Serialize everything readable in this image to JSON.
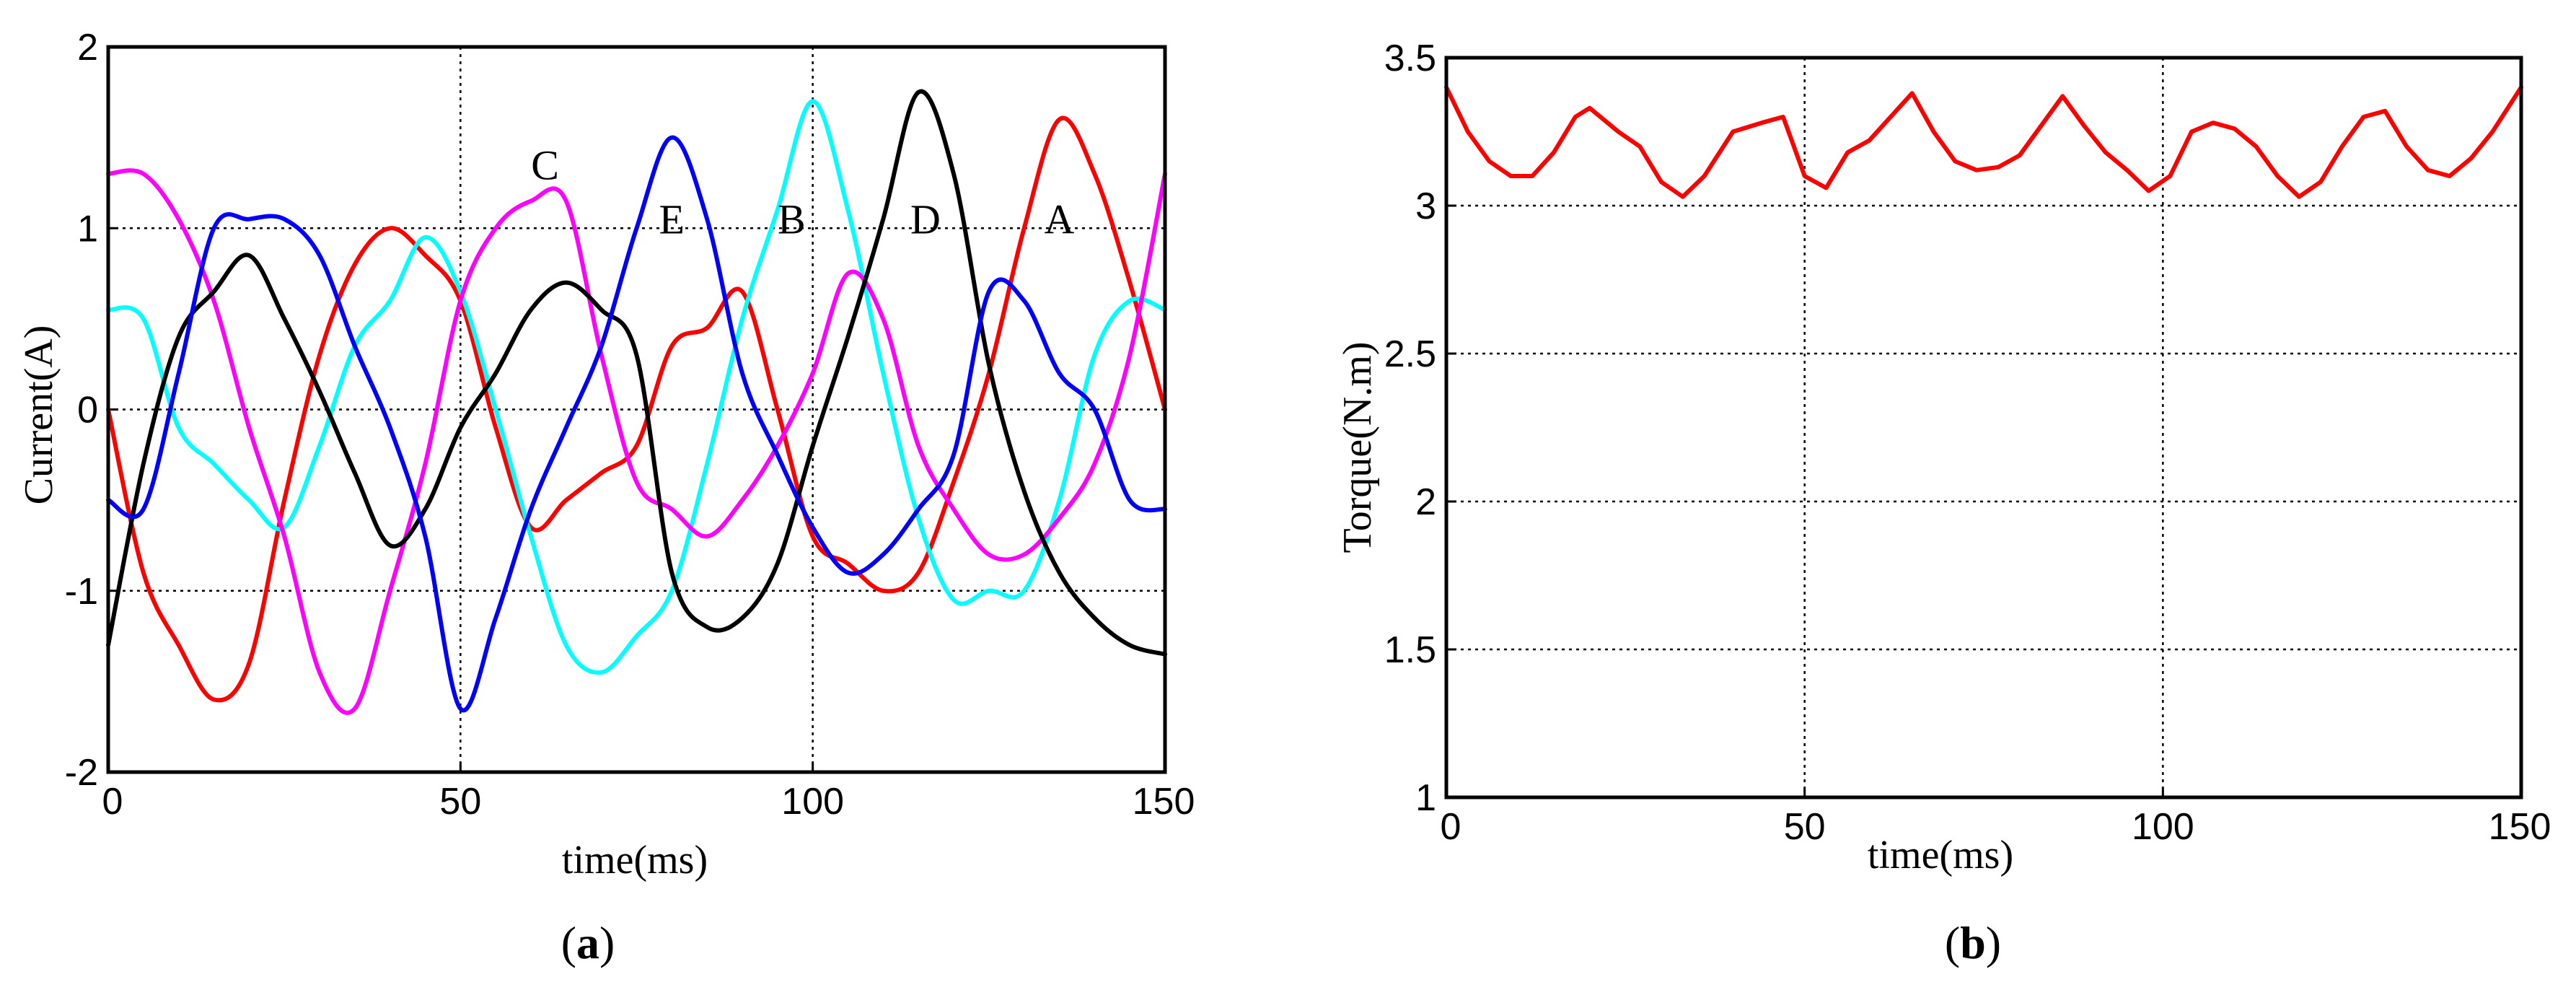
{
  "figure": {
    "panels": [
      {
        "caption_open": "(",
        "caption_letter": "a",
        "caption_close": ")"
      },
      {
        "caption_open": "(",
        "caption_letter": "b",
        "caption_close": ")"
      }
    ]
  },
  "chart_data": [
    {
      "type": "line",
      "panel": "a",
      "title": "",
      "xlabel": "time(ms)",
      "ylabel": "Current(A)",
      "xlim": [
        0,
        150
      ],
      "ylim": [
        -2,
        2
      ],
      "xticks": [
        0,
        50,
        100,
        150
      ],
      "yticks": [
        -2,
        -1,
        0,
        1,
        2
      ],
      "grid": true,
      "annotations": [
        {
          "text": "C",
          "x": 62,
          "y": 1.35
        },
        {
          "text": "E",
          "x": 80,
          "y": 1.05
        },
        {
          "text": "B",
          "x": 97,
          "y": 1.05
        },
        {
          "text": "D",
          "x": 116,
          "y": 1.05
        },
        {
          "text": "A",
          "x": 135,
          "y": 1.05
        }
      ],
      "series": [
        {
          "name": "A",
          "color": "#ff0000",
          "x": [
            0,
            5,
            10,
            15,
            20,
            25,
            30,
            35,
            40,
            45,
            50,
            55,
            60,
            65,
            70,
            75,
            80,
            85,
            90,
            95,
            100,
            105,
            110,
            115,
            120,
            125,
            130,
            135,
            140,
            145,
            150
          ],
          "values": [
            0,
            -0.9,
            -1.3,
            -1.6,
            -1.4,
            -0.5,
            0.3,
            0.8,
            1.0,
            0.85,
            0.6,
            -0.1,
            -0.65,
            -0.5,
            -0.35,
            -0.2,
            0.35,
            0.45,
            0.65,
            0.0,
            -0.7,
            -0.85,
            -1.0,
            -0.9,
            -0.4,
            0.2,
            1.0,
            1.6,
            1.3,
            0.7,
            0.0
          ]
        },
        {
          "name": "B",
          "color": "#00ffff",
          "x": [
            0,
            5,
            10,
            15,
            20,
            25,
            30,
            35,
            40,
            45,
            50,
            55,
            60,
            65,
            70,
            75,
            80,
            85,
            90,
            95,
            100,
            105,
            110,
            115,
            120,
            125,
            130,
            135,
            140,
            145,
            150
          ],
          "values": [
            0.55,
            0.5,
            -0.1,
            -0.3,
            -0.5,
            -0.65,
            -0.2,
            0.35,
            0.6,
            0.95,
            0.65,
            0.0,
            -0.7,
            -1.3,
            -1.45,
            -1.25,
            -1.0,
            -0.3,
            0.5,
            1.1,
            1.7,
            1.1,
            0.2,
            -0.6,
            -1.05,
            -1.0,
            -1.0,
            -0.5,
            0.3,
            0.6,
            0.55
          ]
        },
        {
          "name": "C",
          "color": "#ff00ff",
          "x": [
            0,
            5,
            10,
            15,
            20,
            25,
            30,
            35,
            40,
            45,
            50,
            55,
            60,
            65,
            70,
            75,
            80,
            85,
            90,
            95,
            100,
            105,
            110,
            115,
            120,
            125,
            130,
            135,
            140,
            145,
            150
          ],
          "values": [
            1.3,
            1.3,
            1.05,
            0.6,
            -0.1,
            -0.7,
            -1.45,
            -1.65,
            -1.0,
            -0.3,
            0.6,
            1.0,
            1.15,
            1.15,
            0.3,
            -0.4,
            -0.55,
            -0.7,
            -0.5,
            -0.2,
            0.2,
            0.75,
            0.5,
            -0.2,
            -0.55,
            -0.8,
            -0.8,
            -0.6,
            -0.3,
            0.3,
            1.3
          ]
        },
        {
          "name": "D",
          "color": "#000000",
          "x": [
            0,
            5,
            10,
            15,
            20,
            25,
            30,
            35,
            40,
            45,
            50,
            55,
            60,
            65,
            70,
            75,
            80,
            85,
            90,
            95,
            100,
            105,
            110,
            115,
            120,
            125,
            130,
            135,
            140,
            145,
            150
          ],
          "values": [
            -1.3,
            -0.3,
            0.4,
            0.65,
            0.85,
            0.5,
            0.1,
            -0.35,
            -0.75,
            -0.55,
            -0.1,
            0.2,
            0.55,
            0.7,
            0.55,
            0.3,
            -0.9,
            -1.2,
            -1.15,
            -0.85,
            -0.2,
            0.4,
            1.05,
            1.75,
            1.3,
            0.25,
            -0.45,
            -0.9,
            -1.15,
            -1.3,
            -1.35
          ]
        },
        {
          "name": "E",
          "color": "#0000ff",
          "x": [
            0,
            5,
            10,
            15,
            20,
            25,
            30,
            35,
            40,
            45,
            50,
            55,
            60,
            65,
            70,
            75,
            80,
            85,
            90,
            95,
            100,
            105,
            110,
            115,
            120,
            125,
            130,
            135,
            140,
            145,
            150
          ],
          "values": [
            -0.5,
            -0.55,
            0.2,
            1.0,
            1.05,
            1.05,
            0.85,
            0.35,
            -0.1,
            -0.7,
            -1.65,
            -1.15,
            -0.55,
            -0.1,
            0.35,
            1.0,
            1.5,
            1.05,
            0.2,
            -0.25,
            -0.65,
            -0.9,
            -0.8,
            -0.55,
            -0.25,
            0.65,
            0.6,
            0.2,
            0.0,
            -0.5,
            -0.55
          ]
        }
      ]
    },
    {
      "type": "line",
      "panel": "b",
      "title": "",
      "xlabel": "time(ms)",
      "ylabel": "Torque(N.m)",
      "xlim": [
        0,
        150
      ],
      "ylim": [
        1,
        3.5
      ],
      "xticks": [
        0,
        50,
        100,
        150
      ],
      "yticks": [
        1,
        1.5,
        2,
        2.5,
        3,
        3.5
      ],
      "ytick_labels": [
        "1",
        "1.5",
        "2",
        "2.5",
        "3",
        "3.5"
      ],
      "grid": true,
      "series": [
        {
          "name": "Torque",
          "color": "#ff0000",
          "x": [
            0,
            3,
            6,
            9,
            12,
            15,
            18,
            20,
            24,
            27,
            30,
            33,
            36,
            40,
            44,
            47,
            50,
            53,
            56,
            59,
            62,
            65,
            68,
            71,
            74,
            77,
            80,
            83,
            86,
            89,
            92,
            95,
            98,
            101,
            104,
            107,
            110,
            113,
            116,
            119,
            122,
            125,
            128,
            131,
            134,
            137,
            140,
            143,
            146,
            150
          ],
          "values": [
            3.4,
            3.25,
            3.15,
            3.1,
            3.1,
            3.18,
            3.3,
            3.33,
            3.25,
            3.2,
            3.08,
            3.03,
            3.1,
            3.25,
            3.28,
            3.3,
            3.1,
            3.06,
            3.18,
            3.22,
            3.3,
            3.38,
            3.25,
            3.15,
            3.12,
            3.13,
            3.17,
            3.27,
            3.37,
            3.27,
            3.18,
            3.12,
            3.05,
            3.1,
            3.25,
            3.28,
            3.26,
            3.2,
            3.1,
            3.03,
            3.08,
            3.2,
            3.3,
            3.32,
            3.2,
            3.12,
            3.1,
            3.16,
            3.25,
            3.4
          ]
        }
      ]
    }
  ]
}
